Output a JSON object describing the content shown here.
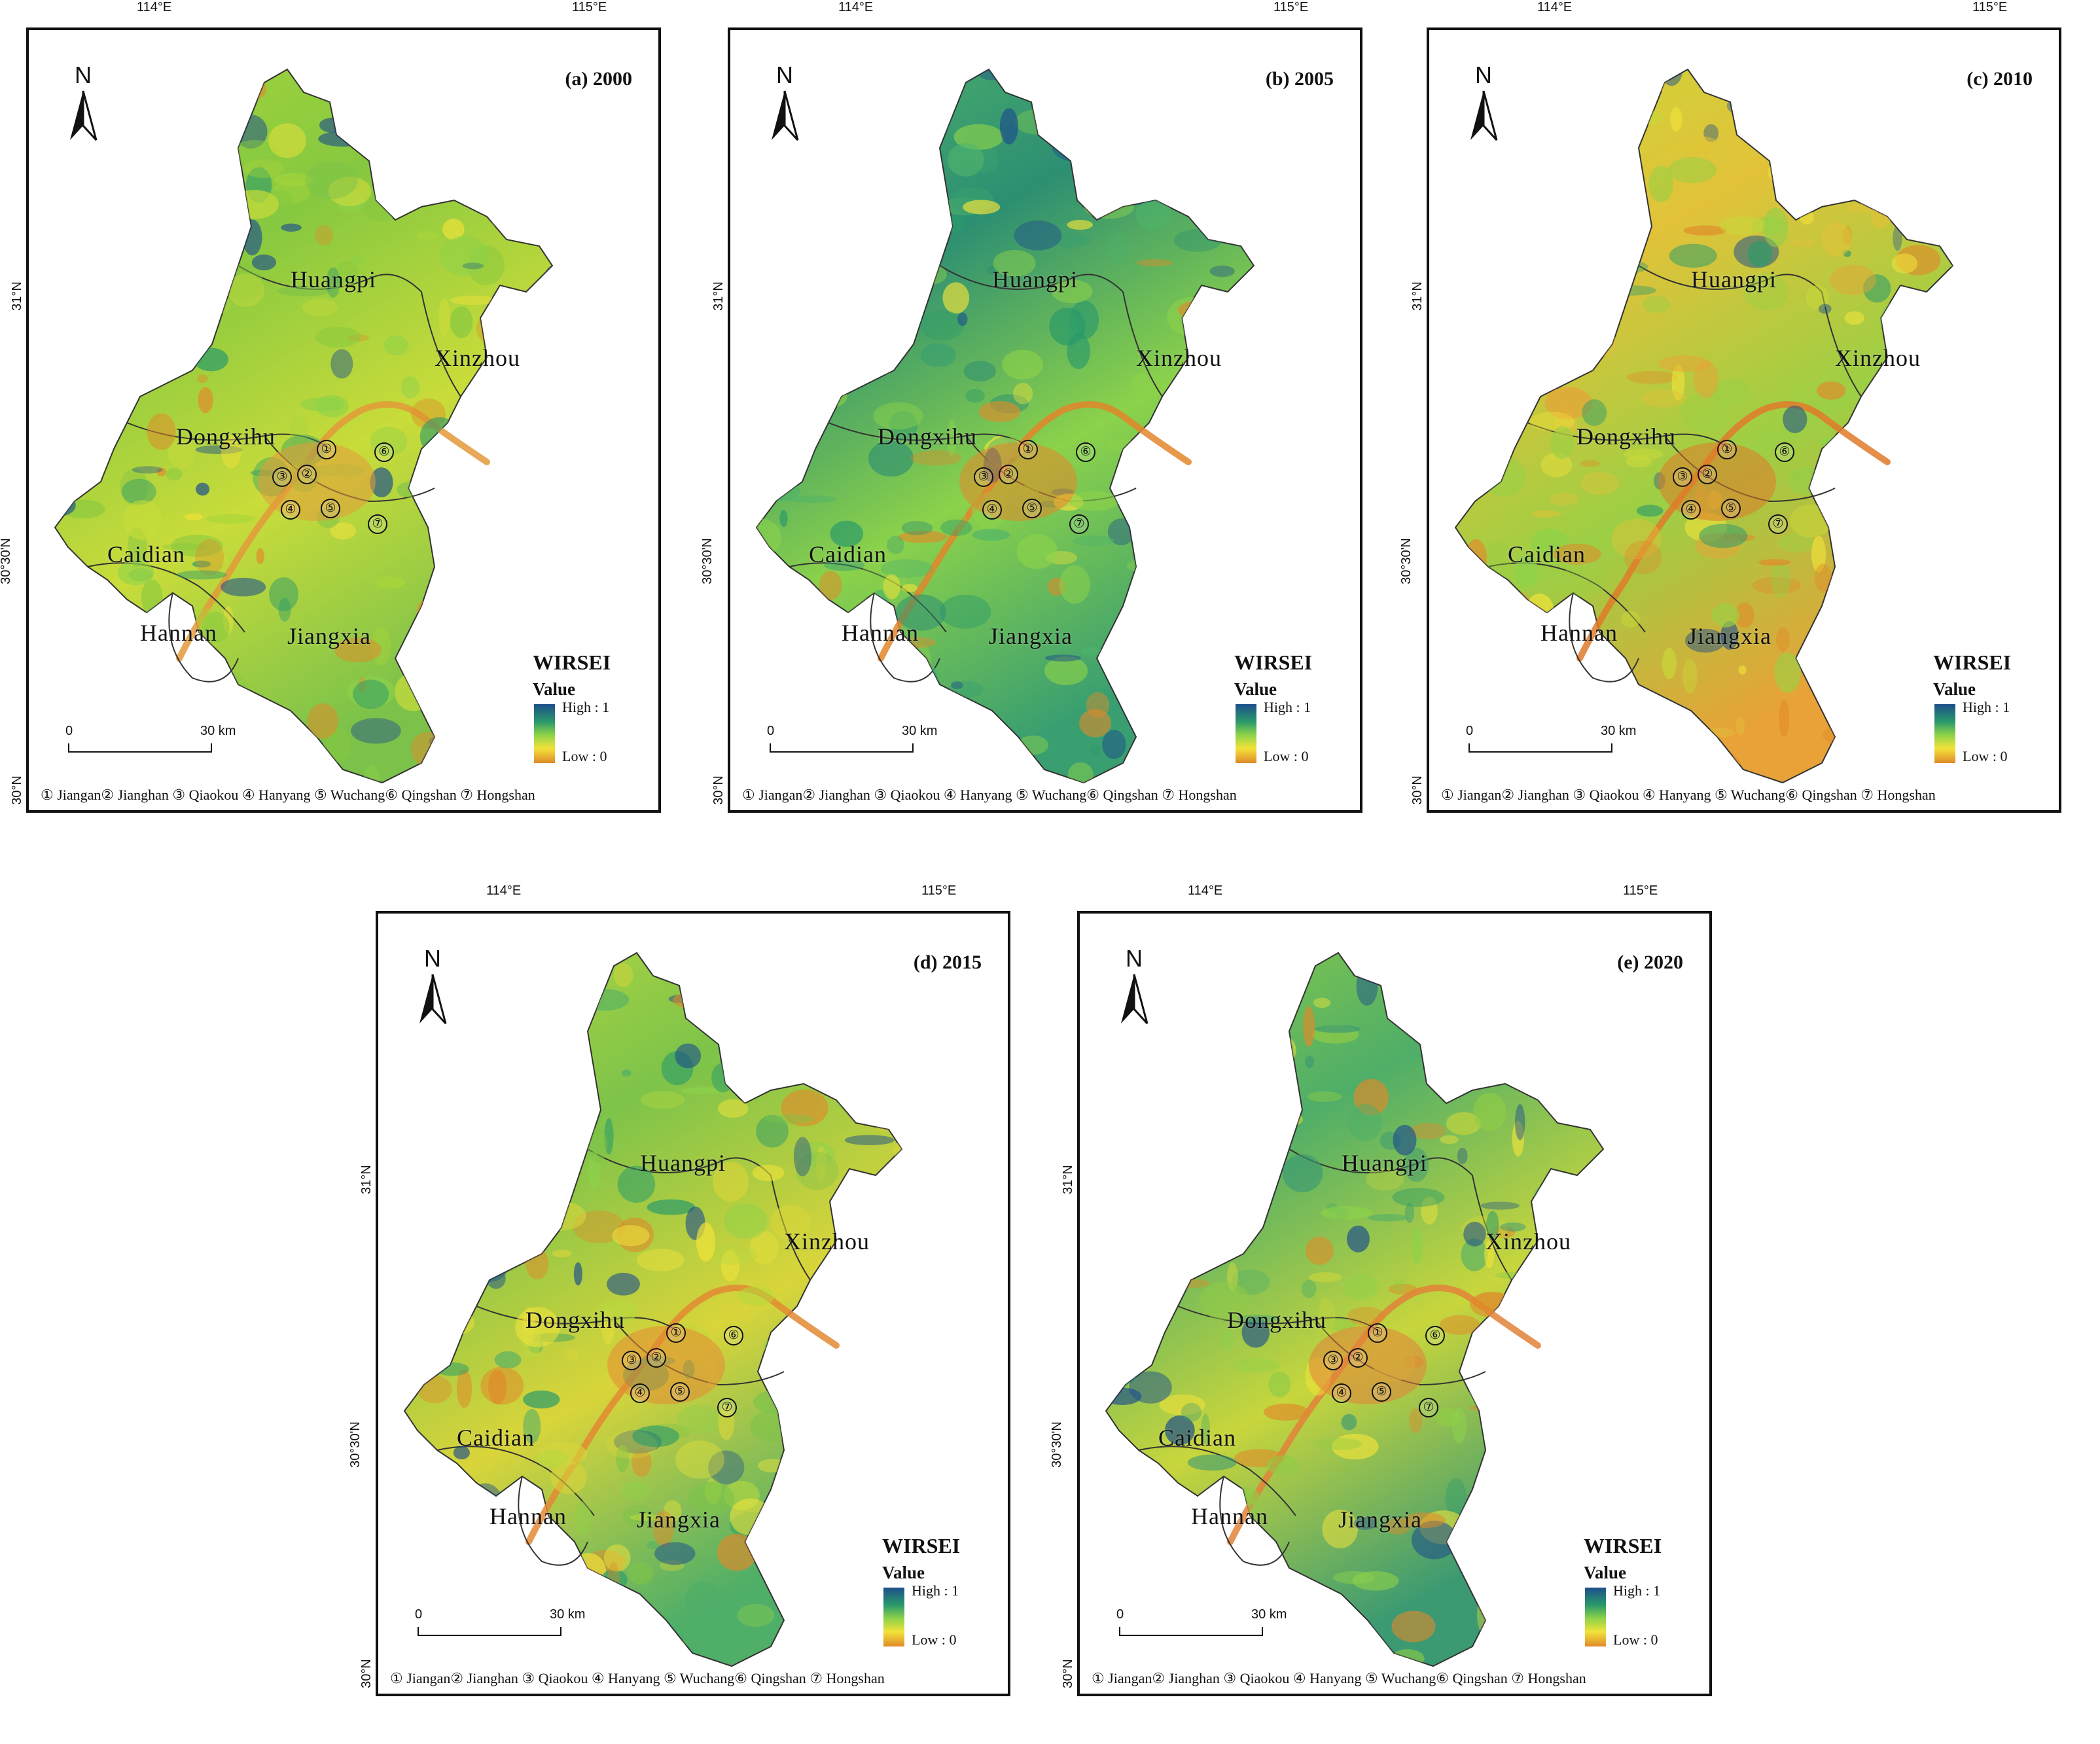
{
  "panels": [
    {
      "id": "a",
      "title": "(a) 2000",
      "fill": [
        "#a8d63a",
        "#86c840",
        "#c9dc3a",
        "#7cc24a"
      ],
      "accent": "#e39a3a"
    },
    {
      "id": "b",
      "title": "(b) 2005",
      "fill": [
        "#4fb46a",
        "#2d8f72",
        "#8cd24a",
        "#3a9f70"
      ],
      "accent": "#e3862a"
    },
    {
      "id": "c",
      "title": "(c) 2010",
      "fill": [
        "#c8d83a",
        "#e2c239",
        "#9ccf44",
        "#e8a237"
      ],
      "accent": "#e07a2a"
    },
    {
      "id": "d",
      "title": "(d) 2015",
      "fill": [
        "#b7d93f",
        "#7dc34a",
        "#d9d53a",
        "#4fae68"
      ],
      "accent": "#e38a33"
    },
    {
      "id": "e",
      "title": "(e) 2020",
      "fill": [
        "#8fcc46",
        "#4fae68",
        "#c8d63c",
        "#3c9a72"
      ],
      "accent": "#e2823a"
    }
  ],
  "labels": {
    "lon": [
      "114°E",
      "115°E"
    ],
    "lat": [
      "31°N",
      "30°30'N",
      "30°N"
    ],
    "north": "N",
    "districts": [
      "Huangpi",
      "Xinzhou",
      "Dongxihu",
      "Caidian",
      "Hannan",
      "Jiangxia"
    ],
    "circles": [
      "①",
      "②",
      "③",
      "④",
      "⑤",
      "⑥",
      "⑦"
    ]
  },
  "legend": {
    "title": "WIRSEI",
    "value_label": "Value",
    "high": "High : 1",
    "low": "Low : 0",
    "ramp_colors": [
      "#1d4f8c",
      "#2a9a6a",
      "#8cd24a",
      "#f2e33a",
      "#e08a2a"
    ]
  },
  "scale": {
    "zero": "0",
    "distance": "30 km"
  },
  "footer": "① Jiangan② Jianghan ③ Qiaokou ④ Hanyang ⑤ Wuchang⑥ Qingshan ⑦ Hongshan"
}
